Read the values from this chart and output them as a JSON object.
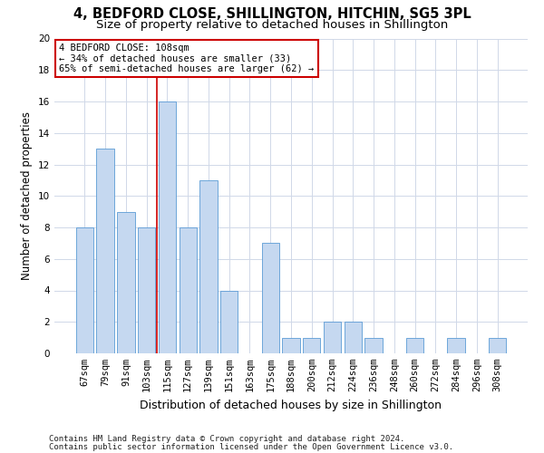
{
  "title1": "4, BEDFORD CLOSE, SHILLINGTON, HITCHIN, SG5 3PL",
  "title2": "Size of property relative to detached houses in Shillington",
  "xlabel": "Distribution of detached houses by size in Shillington",
  "ylabel": "Number of detached properties",
  "categories": [
    "67sqm",
    "79sqm",
    "91sqm",
    "103sqm",
    "115sqm",
    "127sqm",
    "139sqm",
    "151sqm",
    "163sqm",
    "175sqm",
    "188sqm",
    "200sqm",
    "212sqm",
    "224sqm",
    "236sqm",
    "248sqm",
    "260sqm",
    "272sqm",
    "284sqm",
    "296sqm",
    "308sqm"
  ],
  "values": [
    8,
    13,
    9,
    8,
    16,
    8,
    11,
    4,
    0,
    7,
    1,
    1,
    2,
    2,
    1,
    0,
    1,
    0,
    1,
    0,
    1
  ],
  "bar_color": "#c5d8f0",
  "bar_edge_color": "#5b9bd5",
  "grid_color": "#d0d8e8",
  "annotation_line1": "4 BEDFORD CLOSE: 108sqm",
  "annotation_line2": "← 34% of detached houses are smaller (33)",
  "annotation_line3": "65% of semi-detached houses are larger (62) →",
  "annotation_box_color": "#ffffff",
  "annotation_box_edge_color": "#cc0000",
  "vline_color": "#cc0000",
  "vline_x_index": 3.5,
  "ylim_max": 20,
  "yticks": [
    0,
    2,
    4,
    6,
    8,
    10,
    12,
    14,
    16,
    18,
    20
  ],
  "footer1": "Contains HM Land Registry data © Crown copyright and database right 2024.",
  "footer2": "Contains public sector information licensed under the Open Government Licence v3.0.",
  "bg_color": "#ffffff",
  "title1_fontsize": 10.5,
  "title2_fontsize": 9.5,
  "xlabel_fontsize": 9,
  "ylabel_fontsize": 8.5,
  "tick_fontsize": 7.5,
  "annot_fontsize": 7.5,
  "footer_fontsize": 6.5
}
